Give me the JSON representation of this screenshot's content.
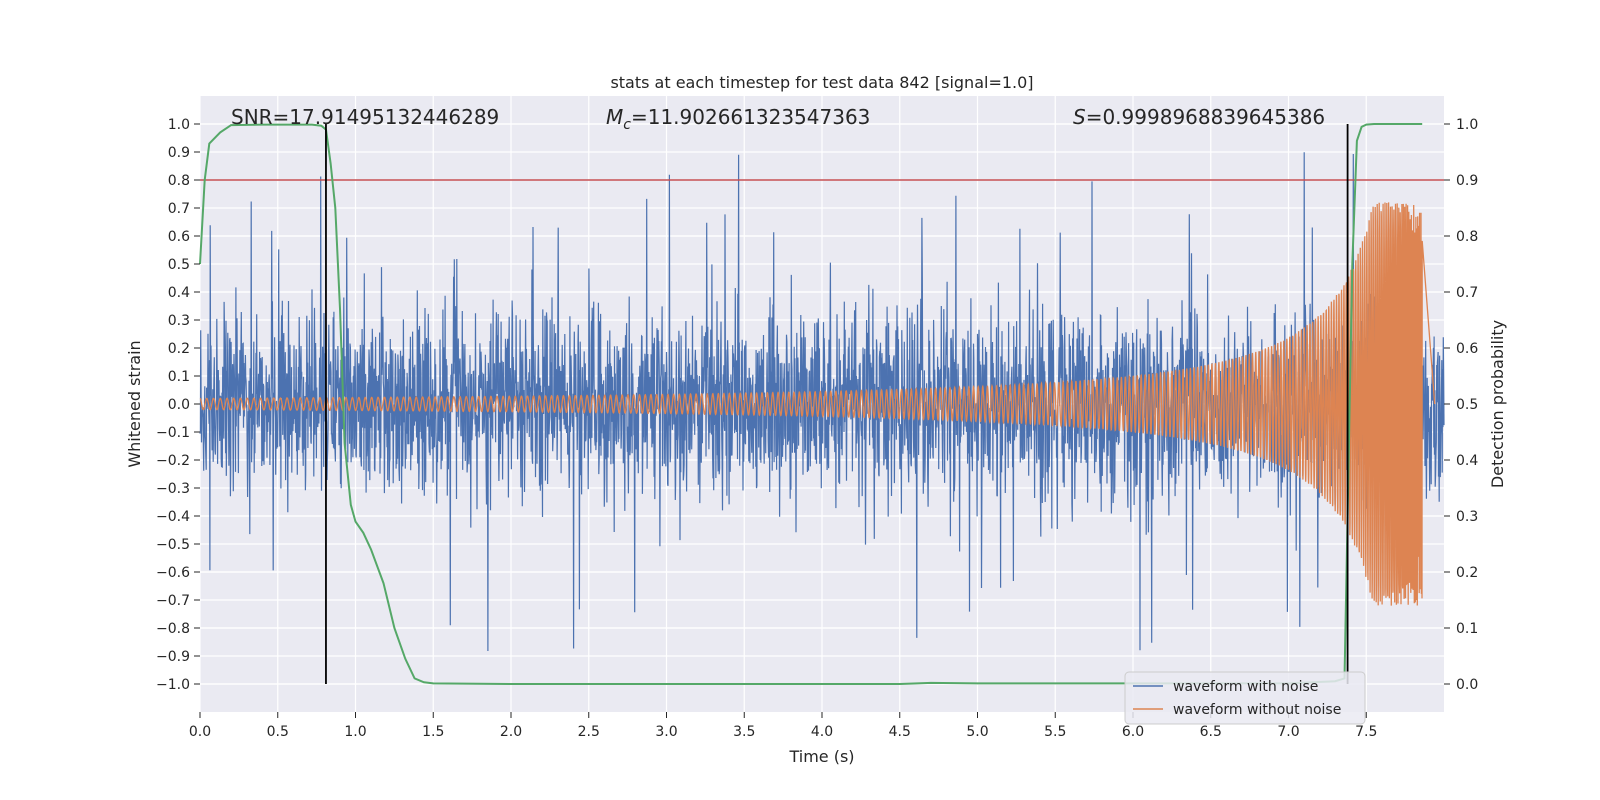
{
  "chart_data": {
    "type": "line",
    "title": "stats at each timestep for test data 842 [signal=1.0]",
    "xlabel": "Time (s)",
    "ylabel_left": "Whitened strain",
    "ylabel_right": "Detection probability",
    "xlim": [
      0.0,
      8.0
    ],
    "ylim_left": [
      -1.1,
      1.1
    ],
    "ylim_right": [
      -0.05,
      1.05
    ],
    "xticks": [
      0.0,
      0.5,
      1.0,
      1.5,
      2.0,
      2.5,
      3.0,
      3.5,
      4.0,
      4.5,
      5.0,
      5.5,
      6.0,
      6.5,
      7.0,
      7.5
    ],
    "xtick_labels": [
      "0.0",
      "0.5",
      "1.0",
      "1.5",
      "2.0",
      "2.5",
      "3.0",
      "3.5",
      "4.0",
      "4.5",
      "5.0",
      "5.5",
      "6.0",
      "6.5",
      "7.0",
      "7.5"
    ],
    "yticks_left": [
      1.0,
      0.9,
      0.8,
      0.7,
      0.6,
      0.5,
      0.4,
      0.3,
      0.2,
      0.1,
      0.0,
      -0.1,
      -0.2,
      -0.3,
      -0.4,
      -0.5,
      -0.6,
      -0.7,
      -0.8,
      -0.9,
      -1.0
    ],
    "ytick_labels_left": [
      "1.0",
      "0.9",
      "0.8",
      "0.7",
      "0.6",
      "0.5",
      "0.4",
      "0.3",
      "0.2",
      "0.1",
      "0.0",
      "−0.1",
      "−0.2",
      "−0.3",
      "−0.4",
      "−0.5",
      "−0.6",
      "−0.7",
      "−0.8",
      "−0.9",
      "−1.0"
    ],
    "yticks_right": [
      1.0,
      0.9,
      0.8,
      0.7,
      0.6,
      0.5,
      0.4,
      0.3,
      0.2,
      0.1,
      0.0
    ],
    "ytick_labels_right": [
      "1.0",
      "0.9",
      "0.8",
      "0.7",
      "0.6",
      "0.5",
      "0.4",
      "0.3",
      "0.2",
      "0.1",
      "0.0"
    ],
    "grid": true,
    "legend_position": "bottom-right",
    "annotations": {
      "snr": "SNR=17.91495132446289",
      "mc_symbol": "M",
      "mc_sub": "c",
      "mc_value": "=11.902661323547363",
      "s_symbol": "S",
      "s_value": "=0.9998968839645386"
    },
    "threshold_line": {
      "axis": "right",
      "value": 0.9,
      "color": "#c44e52"
    },
    "vertical_markers": [
      {
        "x": 0.81,
        "ymin": -1.0,
        "ymax": 1.0
      },
      {
        "x": 7.38,
        "ymin": -1.0,
        "ymax": 1.0
      }
    ],
    "series": [
      {
        "name": "waveform with noise",
        "axis": "left",
        "color": "#4c72b0",
        "kind": "noise",
        "duration": 8.0,
        "end_x": 7.86,
        "typical_amplitude": 0.45,
        "spike_max": 0.93,
        "spike_min": -1.0
      },
      {
        "name": "waveform without noise",
        "axis": "left",
        "color": "#dd8452",
        "kind": "chirp",
        "start_x": 0.0,
        "end_x": 7.86,
        "start_amplitude": 0.02,
        "peak_amplitude": 0.72,
        "peak_x": 7.84,
        "cycles": 180
      },
      {
        "name": "detection probability",
        "axis": "right",
        "color": "#55a868",
        "kind": "line",
        "x": [
          0.0,
          0.03,
          0.06,
          0.13,
          0.2,
          0.4,
          0.6,
          0.72,
          0.78,
          0.81,
          0.84,
          0.87,
          0.9,
          0.93,
          0.97,
          1.0,
          1.05,
          1.1,
          1.18,
          1.25,
          1.32,
          1.38,
          1.44,
          1.5,
          2.0,
          3.0,
          4.0,
          4.5,
          4.7,
          5.0,
          6.0,
          7.0,
          7.3,
          7.36,
          7.38,
          7.41,
          7.44,
          7.47,
          7.5,
          7.55,
          7.6,
          7.7,
          7.8,
          7.86
        ],
        "y": [
          0.75,
          0.9,
          0.965,
          0.985,
          0.998,
          0.999,
          0.999,
          0.999,
          0.997,
          0.99,
          0.93,
          0.85,
          0.67,
          0.43,
          0.32,
          0.29,
          0.27,
          0.24,
          0.18,
          0.1,
          0.045,
          0.01,
          0.003,
          0.001,
          0.0,
          0.0,
          0.0,
          0.0,
          0.002,
          0.001,
          0.001,
          0.001,
          0.005,
          0.01,
          0.3,
          0.75,
          0.97,
          0.995,
          0.999,
          1.0,
          1.0,
          1.0,
          1.0,
          1.0
        ]
      }
    ]
  }
}
